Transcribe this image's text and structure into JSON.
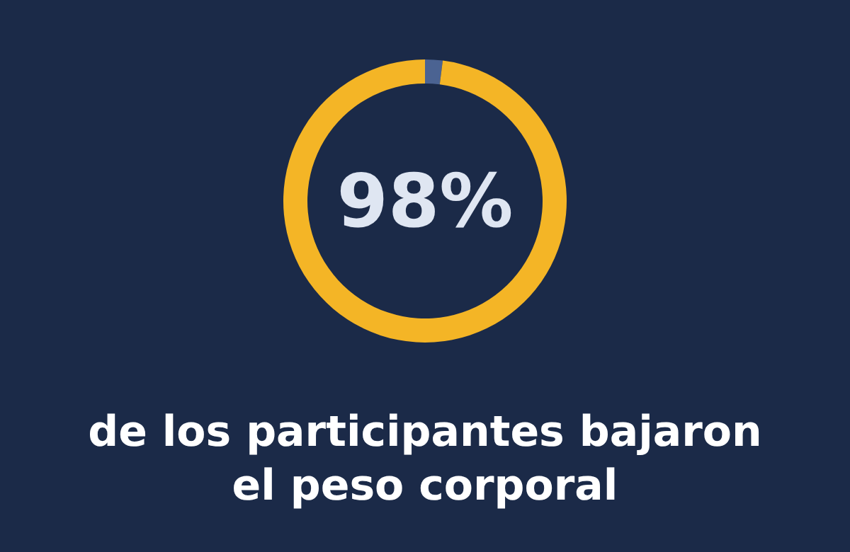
{
  "chart_data": {
    "type": "donut",
    "categories": [
      null,
      null
    ],
    "values": [
      2,
      98
    ],
    "colors": [
      "#4b6392",
      "#f4b526"
    ],
    "value_labels": [
      null,
      "98%"
    ],
    "annotations": [
      "de los participantes bajaron el peso corporal"
    ]
  }
}
